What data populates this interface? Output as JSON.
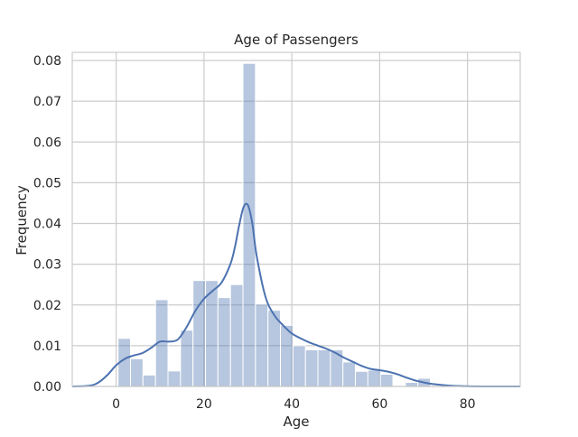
{
  "chart_data": {
    "type": "bar",
    "title": "Age of Passengers",
    "xlabel": "Age",
    "ylabel": "Frequency",
    "xlim": [
      -10,
      92
    ],
    "ylim": [
      0,
      0.082
    ],
    "xticks": [
      0,
      20,
      40,
      60,
      80
    ],
    "yticks": [
      0.0,
      0.01,
      0.02,
      0.03,
      0.04,
      0.05,
      0.06,
      0.07,
      0.08
    ],
    "grid": true,
    "bar_color": "#4c72b0",
    "bar_opacity": 0.4,
    "line_color": "#4c72b0",
    "grid_color": "#cccccc",
    "histogram": {
      "bin_edges": [
        0.42,
        3.27,
        6.11,
        8.96,
        11.8,
        14.65,
        17.49,
        20.34,
        23.18,
        26.03,
        28.87,
        31.72,
        34.56,
        37.41,
        40.25,
        43.1,
        45.94,
        48.79,
        51.63,
        54.48,
        57.32,
        60.17,
        63.01,
        65.86,
        68.7,
        71.55,
        74.39,
        77.24,
        80.08
      ],
      "values": [
        0.0118,
        0.0068,
        0.0028,
        0.0213,
        0.0038,
        0.0138,
        0.026,
        0.026,
        0.0218,
        0.025,
        0.0793,
        0.0202,
        0.0187,
        0.015,
        0.01,
        0.009,
        0.009,
        0.009,
        0.006,
        0.0037,
        0.004,
        0.003,
        0.0,
        0.001,
        0.002,
        0.0,
        0.0,
        0.0
      ]
    },
    "kde": {
      "x": [
        -10,
        -6,
        -4,
        -2,
        0,
        2,
        4,
        6,
        8,
        10,
        12,
        14,
        16,
        18,
        20,
        22,
        24,
        26,
        27,
        28,
        29,
        30,
        31,
        32,
        34,
        36,
        38,
        40,
        42,
        44,
        46,
        48,
        50,
        52,
        54,
        56,
        58,
        60,
        62,
        64,
        66,
        68,
        70,
        72,
        76,
        80,
        84,
        88,
        92
      ],
      "y": [
        0.0,
        0.0002,
        0.001,
        0.0028,
        0.0052,
        0.0068,
        0.0076,
        0.0082,
        0.0095,
        0.011,
        0.011,
        0.0115,
        0.0145,
        0.0185,
        0.0215,
        0.0235,
        0.0255,
        0.03,
        0.034,
        0.0395,
        0.044,
        0.0445,
        0.04,
        0.032,
        0.022,
        0.0175,
        0.015,
        0.013,
        0.0118,
        0.0108,
        0.01,
        0.0092,
        0.0082,
        0.007,
        0.006,
        0.005,
        0.0043,
        0.004,
        0.0036,
        0.003,
        0.0022,
        0.0015,
        0.001,
        0.0006,
        0.0002,
        5e-05,
        0.0,
        0.0,
        0.0
      ]
    }
  }
}
